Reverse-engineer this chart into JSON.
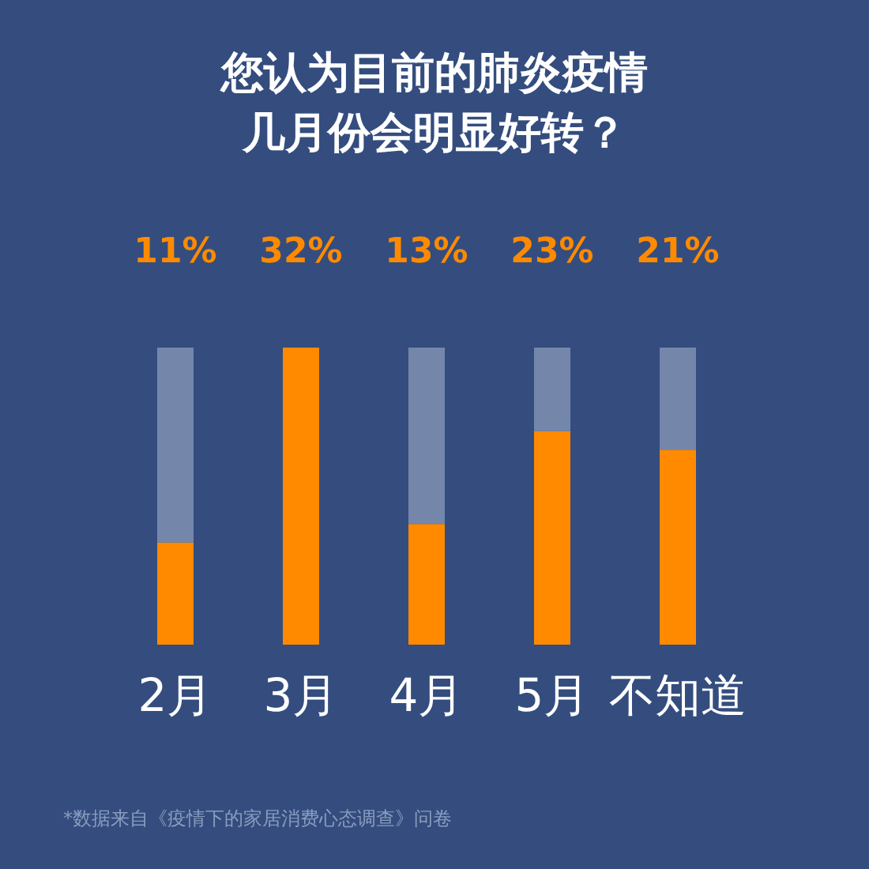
{
  "chart_data": {
    "type": "bar",
    "title": "您认为目前的肺炎疫情几月份会明显好转？",
    "categories": [
      "2月",
      "3月",
      "4月",
      "5月",
      "不知道"
    ],
    "stacked": true,
    "series": [
      {
        "color": "#ff8a00",
        "values": [
          11,
          32,
          13,
          23,
          21
        ],
        "value_labels": [
          "11%",
          "32%",
          "13%",
          "23%",
          "21%"
        ]
      },
      {
        "color": "#7487ab",
        "values": [
          21,
          0,
          19,
          9,
          11
        ]
      }
    ],
    "annotations": [
      "*数据来自《疫情下的家居消费心态调查》问卷"
    ]
  }
}
